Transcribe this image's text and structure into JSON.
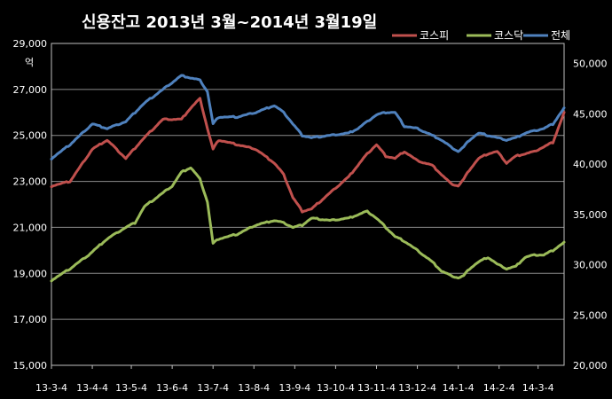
{
  "chart_data": {
    "type": "line",
    "title": "신용잔고 2013년 3월~2014년 3월19일",
    "xlabel": "",
    "ylabel_left": "억",
    "ylabel_right": "",
    "y_left_lim": [
      15000,
      29000
    ],
    "y_right_lim": [
      20000,
      52000
    ],
    "y_left_ticks": [
      "15,000",
      "17,000",
      "19,000",
      "21,000",
      "23,000",
      "25,000",
      "27,000",
      "29,000"
    ],
    "y_left_tick_values": [
      15000,
      17000,
      19000,
      21000,
      23000,
      25000,
      27000,
      29000
    ],
    "y_right_ticks": [
      "20,000",
      "25,000",
      "30,000",
      "35,000",
      "40,000",
      "45,000",
      "50,000"
    ],
    "y_right_tick_values": [
      20000,
      25000,
      30000,
      35000,
      40000,
      45000,
      50000
    ],
    "x_ticks": [
      "13-3-4",
      "13-4-4",
      "13-5-4",
      "13-6-4",
      "13-7-4",
      "13-8-4",
      "13-9-4",
      "13-10-4",
      "13-11-4",
      "13-12-4",
      "14-1-4",
      "14-2-4",
      "14-3-4"
    ],
    "x_tick_index": [
      0,
      22,
      43,
      65,
      87,
      109,
      131,
      153,
      175,
      197,
      219,
      241,
      262
    ],
    "x_count": 277,
    "grid": true,
    "legend_position": "top-right",
    "series": [
      {
        "name": "코스피",
        "axis": "left",
        "color": "#c0504d",
        "x": [
          0,
          10,
          22,
          30,
          40,
          50,
          60,
          70,
          75,
          80,
          84,
          87,
          90,
          100,
          110,
          120,
          125,
          130,
          135,
          140,
          150,
          160,
          165,
          170,
          175,
          180,
          185,
          190,
          197,
          205,
          210,
          215,
          219,
          222,
          225,
          230,
          235,
          240,
          245,
          250,
          255,
          260,
          265,
          270,
          277
        ],
        "values": [
          22800,
          23000,
          24400,
          24800,
          24000,
          24900,
          25700,
          25700,
          26200,
          26600,
          25300,
          24400,
          24800,
          24600,
          24400,
          23800,
          23300,
          22300,
          21700,
          21800,
          22500,
          23200,
          23700,
          24200,
          24600,
          24100,
          24000,
          24300,
          23900,
          23700,
          23300,
          22900,
          22800,
          23100,
          23500,
          24000,
          24200,
          24300,
          23800,
          24100,
          24200,
          24300,
          24500,
          24700,
          26200
        ]
      },
      {
        "name": "코스닥",
        "axis": "left",
        "color": "#9bbb59",
        "x": [
          0,
          10,
          20,
          30,
          40,
          45,
          50,
          55,
          65,
          70,
          75,
          80,
          84,
          87,
          90,
          95,
          100,
          110,
          120,
          125,
          130,
          135,
          140,
          150,
          160,
          170,
          175,
          180,
          185,
          190,
          197,
          205,
          210,
          215,
          219,
          222,
          225,
          230,
          235,
          240,
          245,
          250,
          255,
          260,
          265,
          270,
          277
        ],
        "values": [
          18700,
          19200,
          19800,
          20500,
          21000,
          21200,
          21900,
          22200,
          22800,
          23400,
          23600,
          23100,
          22100,
          20300,
          20500,
          20600,
          20700,
          21100,
          21300,
          21200,
          21000,
          21100,
          21400,
          21300,
          21400,
          21700,
          21400,
          21000,
          20600,
          20400,
          20000,
          19500,
          19100,
          18900,
          18800,
          18900,
          19200,
          19500,
          19700,
          19400,
          19200,
          19300,
          19700,
          19800,
          19800,
          20000,
          20400
        ]
      },
      {
        "name": "전체",
        "axis": "left",
        "color": "#4f81bd",
        "x": [
          0,
          10,
          22,
          30,
          40,
          50,
          60,
          70,
          75,
          80,
          84,
          87,
          90,
          100,
          110,
          120,
          125,
          130,
          135,
          140,
          150,
          160,
          165,
          170,
          175,
          180,
          185,
          190,
          197,
          205,
          210,
          215,
          219,
          222,
          225,
          230,
          235,
          240,
          245,
          250,
          255,
          260,
          265,
          270,
          277
        ],
        "values": [
          24000,
          24600,
          25500,
          25300,
          25600,
          26400,
          27000,
          27600,
          27500,
          27400,
          26900,
          25500,
          25800,
          25800,
          26000,
          26300,
          26000,
          25500,
          25000,
          24900,
          25000,
          25100,
          25300,
          25600,
          25900,
          26000,
          26000,
          25400,
          25300,
          25000,
          24800,
          24500,
          24300,
          24500,
          24800,
          25100,
          25000,
          24900,
          24800,
          24900,
          25100,
          25200,
          25300,
          25500,
          26300
        ]
      }
    ]
  }
}
